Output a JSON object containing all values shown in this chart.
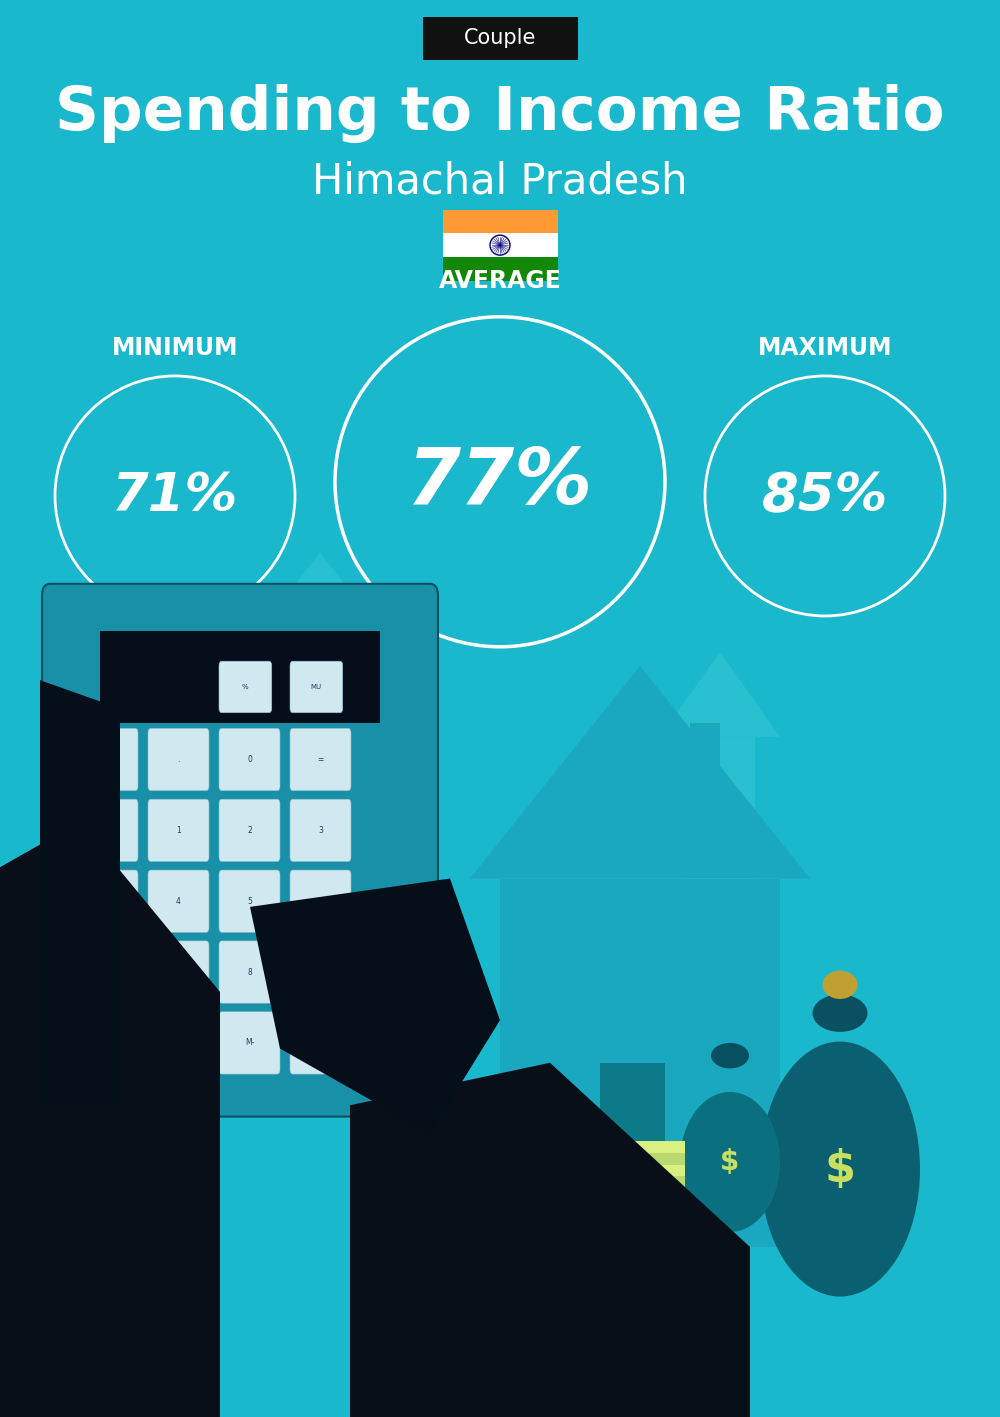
{
  "bg_color": "#1ab8cc",
  "title_main": "Spending to Income Ratio",
  "title_sub": "Himachal Pradesh",
  "label_tag": "Couple",
  "tag_bg": "#111111",
  "tag_text_color": "#ffffff",
  "circle_color": "#ffffff",
  "text_color": "#ffffff",
  "min_label": "MINIMUM",
  "avg_label": "AVERAGE",
  "max_label": "MAXIMUM",
  "min_value": "71%",
  "avg_value": "77%",
  "max_value": "85%",
  "min_fontsize": 38,
  "avg_fontsize": 56,
  "max_fontsize": 38,
  "label_fontsize": 17,
  "title_fontsize": 44,
  "subtitle_fontsize": 30,
  "tag_fontsize": 15,
  "fig_w": 10.0,
  "fig_h": 14.17
}
